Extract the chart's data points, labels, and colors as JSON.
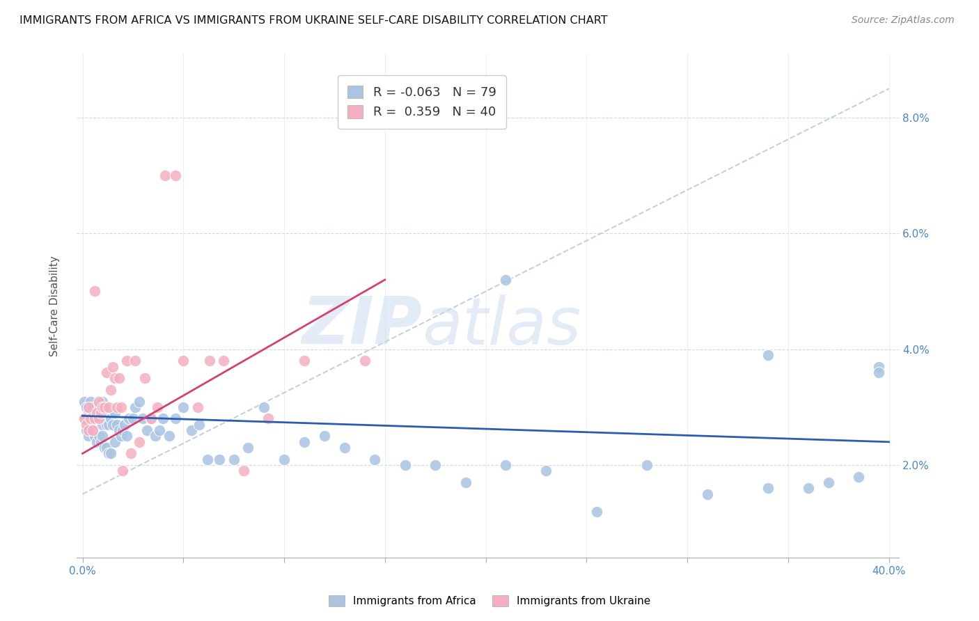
{
  "title": "IMMIGRANTS FROM AFRICA VS IMMIGRANTS FROM UKRAINE SELF-CARE DISABILITY CORRELATION CHART",
  "source": "Source: ZipAtlas.com",
  "ylabel": "Self-Care Disability",
  "ylabel_right_ticks": [
    "2.0%",
    "4.0%",
    "6.0%",
    "8.0%"
  ],
  "ylabel_right_vals": [
    0.02,
    0.04,
    0.06,
    0.08
  ],
  "xlim": [
    -0.003,
    0.405
  ],
  "ylim": [
    0.004,
    0.091
  ],
  "legend_r_blue": "-0.063",
  "legend_n_blue": "79",
  "legend_r_pink": "0.359",
  "legend_n_pink": "40",
  "blue_color": "#aac4e2",
  "pink_color": "#f5afc0",
  "blue_line_color": "#2a5db0",
  "pink_line_color": "#d44070",
  "dashed_line_color": "#b8c8de",
  "watermark_zip": "ZIP",
  "watermark_atlas": "atlas",
  "africa_x": [
    0.001,
    0.001,
    0.002,
    0.002,
    0.003,
    0.003,
    0.004,
    0.004,
    0.005,
    0.005,
    0.006,
    0.006,
    0.007,
    0.007,
    0.008,
    0.008,
    0.009,
    0.009,
    0.01,
    0.01,
    0.01,
    0.011,
    0.011,
    0.012,
    0.012,
    0.013,
    0.013,
    0.014,
    0.014,
    0.015,
    0.016,
    0.016,
    0.017,
    0.018,
    0.019,
    0.02,
    0.021,
    0.022,
    0.023,
    0.025,
    0.026,
    0.028,
    0.03,
    0.032,
    0.034,
    0.036,
    0.038,
    0.04,
    0.043,
    0.046,
    0.05,
    0.054,
    0.058,
    0.062,
    0.068,
    0.075,
    0.082,
    0.09,
    0.1,
    0.11,
    0.12,
    0.13,
    0.145,
    0.16,
    0.175,
    0.19,
    0.21,
    0.23,
    0.255,
    0.28,
    0.31,
    0.34,
    0.36,
    0.37,
    0.385,
    0.395,
    0.395,
    0.21,
    0.34
  ],
  "africa_y": [
    0.031,
    0.028,
    0.03,
    0.026,
    0.029,
    0.025,
    0.031,
    0.027,
    0.03,
    0.026,
    0.029,
    0.025,
    0.028,
    0.024,
    0.03,
    0.025,
    0.028,
    0.024,
    0.031,
    0.027,
    0.025,
    0.028,
    0.023,
    0.027,
    0.023,
    0.027,
    0.022,
    0.028,
    0.022,
    0.027,
    0.029,
    0.024,
    0.027,
    0.026,
    0.025,
    0.026,
    0.027,
    0.025,
    0.028,
    0.028,
    0.03,
    0.031,
    0.028,
    0.026,
    0.028,
    0.025,
    0.026,
    0.028,
    0.025,
    0.028,
    0.03,
    0.026,
    0.027,
    0.021,
    0.021,
    0.021,
    0.023,
    0.03,
    0.021,
    0.024,
    0.025,
    0.023,
    0.021,
    0.02,
    0.02,
    0.017,
    0.02,
    0.019,
    0.012,
    0.02,
    0.015,
    0.016,
    0.016,
    0.017,
    0.018,
    0.037,
    0.036,
    0.052,
    0.039
  ],
  "ukraine_x": [
    0.001,
    0.002,
    0.003,
    0.003,
    0.004,
    0.005,
    0.006,
    0.006,
    0.007,
    0.008,
    0.008,
    0.009,
    0.01,
    0.011,
    0.012,
    0.013,
    0.014,
    0.015,
    0.016,
    0.017,
    0.018,
    0.019,
    0.02,
    0.022,
    0.024,
    0.026,
    0.028,
    0.031,
    0.034,
    0.037,
    0.041,
    0.046,
    0.05,
    0.057,
    0.063,
    0.07,
    0.08,
    0.092,
    0.11,
    0.14
  ],
  "ukraine_y": [
    0.028,
    0.027,
    0.03,
    0.026,
    0.028,
    0.026,
    0.05,
    0.028,
    0.029,
    0.031,
    0.028,
    0.029,
    0.03,
    0.03,
    0.036,
    0.03,
    0.033,
    0.037,
    0.035,
    0.03,
    0.035,
    0.03,
    0.019,
    0.038,
    0.022,
    0.038,
    0.024,
    0.035,
    0.028,
    0.03,
    0.07,
    0.07,
    0.038,
    0.03,
    0.038,
    0.038,
    0.019,
    0.028,
    0.038,
    0.038
  ],
  "blue_line_x0": 0.0,
  "blue_line_y0": 0.0285,
  "blue_line_x1": 0.4,
  "blue_line_y1": 0.024,
  "pink_line_x0": 0.0,
  "pink_line_y0": 0.022,
  "pink_line_x1": 0.15,
  "pink_line_y1": 0.052,
  "dashed_line_x0": 0.0,
  "dashed_line_y0": 0.015,
  "dashed_line_x1": 0.4,
  "dashed_line_y1": 0.085
}
